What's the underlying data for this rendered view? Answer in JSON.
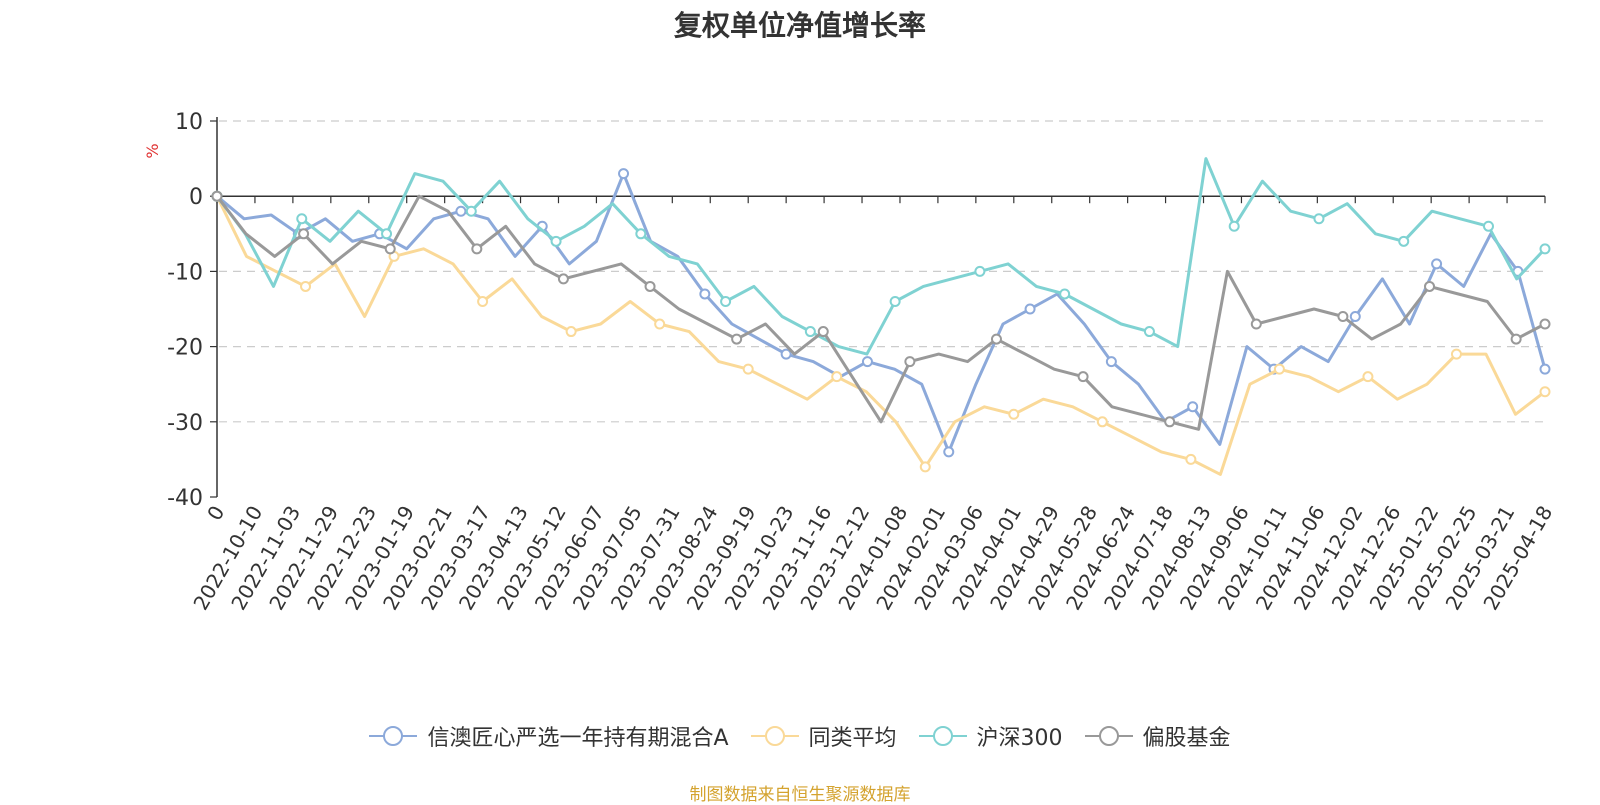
{
  "chart_data": {
    "type": "line",
    "title": "复权单位净值增长率",
    "ylabel": "%",
    "ylim": [
      -40,
      10
    ],
    "yticks": [
      "10",
      "0",
      "-10",
      "-20",
      "-30",
      "-40"
    ],
    "xlabels": [
      "0",
      "2022-10-10",
      "2022-11-03",
      "2022-11-29",
      "2022-12-23",
      "2023-01-19",
      "2023-02-21",
      "2023-03-17",
      "2023-04-13",
      "2023-05-12",
      "2023-06-07",
      "2023-07-05",
      "2023-07-31",
      "2023-08-24",
      "2023-09-19",
      "2023-10-23",
      "2023-11-16",
      "2023-12-12",
      "2024-01-08",
      "2024-02-01",
      "2024-03-06",
      "2024-04-01",
      "2024-04-29",
      "2024-05-28",
      "2024-06-24",
      "2024-07-18",
      "2024-08-13",
      "2024-09-06",
      "2024-10-11",
      "2024-11-06",
      "2024-12-02",
      "2024-12-26",
      "2025-01-22",
      "2025-02-25",
      "2025-03-21",
      "2025-04-18"
    ],
    "grid": true,
    "legend_position": "bottom",
    "series": [
      {
        "name": "信澳匠心严选一年持有期混合A",
        "color": "#8ca9da",
        "values": [
          0,
          -3,
          -2.5,
          -5,
          -3,
          -6,
          -5,
          -7,
          -3,
          -2,
          -3,
          -8,
          -4,
          -9,
          -6,
          3,
          -6,
          -8,
          -13,
          -17,
          -19,
          -21,
          -22,
          -24,
          -22,
          -23,
          -25,
          -34,
          -25,
          -17,
          -15,
          -13,
          -17,
          -22,
          -25,
          -30,
          -28,
          -33,
          -20,
          -23,
          -20,
          -22,
          -16,
          -11,
          -17,
          -9,
          -12,
          -5,
          -10,
          -23
        ]
      },
      {
        "name": "同类平均",
        "color": "#fad998",
        "values": [
          0,
          -8,
          -10,
          -12,
          -9,
          -16,
          -8,
          -7,
          -9,
          -14,
          -11,
          -16,
          -18,
          -17,
          -14,
          -17,
          -18,
          -22,
          -23,
          -25,
          -27,
          -24,
          -26,
          -30,
          -36,
          -30,
          -28,
          -29,
          -27,
          -28,
          -30,
          -32,
          -34,
          -35,
          -37,
          -25,
          -23,
          -24,
          -26,
          -24,
          -27,
          -25,
          -21,
          -21,
          -29,
          -26
        ]
      },
      {
        "name": "沪深300",
        "color": "#7fd2d2",
        "values": [
          0,
          -5,
          -12,
          -3,
          -6,
          -2,
          -5,
          3,
          2,
          -2,
          2,
          -3,
          -6,
          -4,
          -1,
          -5,
          -8,
          -9,
          -14,
          -12,
          -16,
          -18,
          -20,
          -21,
          -14,
          -12,
          -11,
          -10,
          -9,
          -12,
          -13,
          -15,
          -17,
          -18,
          -20,
          5,
          -4,
          2,
          -2,
          -3,
          -1,
          -5,
          -6,
          -2,
          -3,
          -4,
          -11,
          -7
        ]
      },
      {
        "name": "偏股基金",
        "color": "#999999",
        "values": [
          0,
          -5,
          -8,
          -5,
          -9,
          -6,
          -7,
          0,
          -2,
          -7,
          -4,
          -9,
          -11,
          -10,
          -9,
          -12,
          -15,
          -17,
          -19,
          -17,
          -21,
          -18,
          -24,
          -30,
          -22,
          -21,
          -22,
          -19,
          -21,
          -23,
          -24,
          -28,
          -29,
          -30,
          -31,
          -10,
          -17,
          -16,
          -15,
          -16,
          -19,
          -17,
          -12,
          -13,
          -14,
          -19,
          -17
        ]
      }
    ]
  },
  "footer": {
    "source": "制图数据来自恒生聚源数据库",
    "source_color": "#d4a32f"
  },
  "axis": {
    "unit_color": "#e03131"
  }
}
